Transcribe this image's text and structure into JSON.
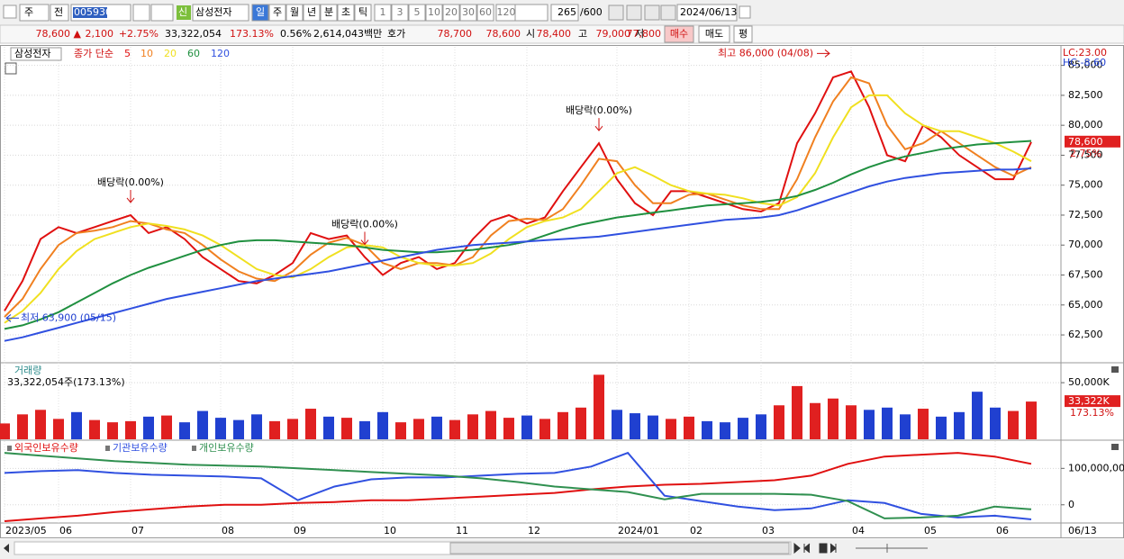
{
  "toolbar": {
    "market": "주",
    "prev": "전",
    "code": "005930",
    "new": "신",
    "name": "삼성전자",
    "periods": [
      "일",
      "주",
      "월",
      "년",
      "분",
      "초",
      "틱"
    ],
    "intervals": [
      "1",
      "3",
      "5",
      "10",
      "20",
      "30",
      "60",
      "120"
    ],
    "count": "265",
    "max": "/600",
    "date": "2024/06/13"
  },
  "quote": {
    "price": "78,600 ▲",
    "change": "2,100",
    "rate": "+2.75%",
    "volume": "33,322,054",
    "volume_rate": "173.13%",
    "turnover": "0.56%",
    "amount": "2,614,043백만",
    "ask_label": "호가",
    "ask": "78,700",
    "bid": "78,600",
    "open_label": "시",
    "open": "78,400",
    "high_label": "고",
    "high": "79,000",
    "low_label": "저",
    "low": "77,800",
    "buy": "매수",
    "sell": "매도",
    "avg": "평"
  },
  "chart_data": [
    {
      "type": "line",
      "legend_title": "삼성전자",
      "ma_label": "종가 단순",
      "categories": [
        "2023/05",
        null,
        null,
        "06",
        null,
        null,
        null,
        "07",
        null,
        null,
        null,
        null,
        "08",
        null,
        null,
        null,
        "09",
        null,
        null,
        null,
        null,
        "10",
        null,
        null,
        null,
        "11",
        null,
        null,
        null,
        "12",
        null,
        null,
        null,
        null,
        "2024/01",
        null,
        null,
        null,
        "02",
        null,
        null,
        null,
        "03",
        null,
        null,
        null,
        null,
        "04",
        null,
        null,
        null,
        "05",
        null,
        null,
        null,
        "06",
        null,
        null
      ],
      "last_date": "06/13",
      "series": [
        {
          "name": "5",
          "color": "#e01010",
          "values": [
            64500,
            67000,
            70500,
            71500,
            71000,
            71500,
            72000,
            72500,
            71000,
            71500,
            70500,
            69000,
            68000,
            67000,
            66800,
            67500,
            68500,
            71000,
            70500,
            70800,
            69000,
            67500,
            68500,
            69000,
            68000,
            68500,
            70500,
            72000,
            72500,
            71800,
            72300,
            74500,
            76500,
            78500,
            75500,
            73500,
            72500,
            74500,
            74500,
            74000,
            73500,
            73000,
            72800,
            73500,
            78500,
            81000,
            84000,
            84500,
            81500,
            77500,
            77000,
            80000,
            79000,
            77500,
            76500,
            75500,
            75500,
            78600
          ]
        },
        {
          "name": "10",
          "color": "#f08020",
          "values": [
            64000,
            65500,
            68000,
            70000,
            71000,
            71200,
            71500,
            72000,
            71800,
            71300,
            71000,
            70000,
            68800,
            67800,
            67200,
            67000,
            67800,
            69200,
            70200,
            70600,
            70000,
            68500,
            68000,
            68500,
            68500,
            68300,
            69000,
            70800,
            72000,
            72200,
            72100,
            73000,
            75000,
            77200,
            77000,
            75000,
            73500,
            73500,
            74200,
            74300,
            73800,
            73300,
            73000,
            73000,
            75500,
            79000,
            82000,
            84000,
            83500,
            80000,
            78000,
            78500,
            79500,
            78500,
            77500,
            76500,
            75800,
            76500
          ]
        },
        {
          "name": "20",
          "color": "#f0e020",
          "values": [
            63500,
            64500,
            66000,
            68000,
            69500,
            70500,
            71000,
            71500,
            71800,
            71600,
            71300,
            70800,
            70000,
            69000,
            68000,
            67500,
            67300,
            68000,
            69000,
            69800,
            70000,
            69800,
            69000,
            68500,
            68300,
            68300,
            68500,
            69300,
            70500,
            71500,
            72000,
            72300,
            73000,
            74500,
            76000,
            76500,
            75800,
            75000,
            74500,
            74300,
            74200,
            73900,
            73500,
            73300,
            74000,
            76000,
            79000,
            81500,
            82500,
            82500,
            81000,
            80000,
            79500,
            79500,
            79000,
            78500,
            77800,
            77000
          ]
        },
        {
          "name": "60",
          "color": "#209040",
          "values": [
            63000,
            63300,
            63800,
            64400,
            65200,
            66000,
            66800,
            67500,
            68100,
            68600,
            69100,
            69600,
            70000,
            70300,
            70400,
            70400,
            70300,
            70200,
            70100,
            70000,
            69800,
            69600,
            69500,
            69400,
            69400,
            69500,
            69600,
            69800,
            70000,
            70300,
            70800,
            71300,
            71700,
            72000,
            72300,
            72500,
            72700,
            72900,
            73100,
            73300,
            73400,
            73500,
            73600,
            73800,
            74100,
            74600,
            75200,
            75900,
            76500,
            77000,
            77400,
            77700,
            78000,
            78200,
            78400,
            78500,
            78600,
            78700
          ]
        },
        {
          "name": "120",
          "color": "#3050e0",
          "values": [
            62000,
            62300,
            62700,
            63100,
            63500,
            63900,
            64300,
            64700,
            65100,
            65500,
            65800,
            66100,
            66400,
            66700,
            67000,
            67200,
            67400,
            67600,
            67800,
            68100,
            68400,
            68700,
            69000,
            69300,
            69600,
            69800,
            70000,
            70100,
            70200,
            70300,
            70400,
            70500,
            70600,
            70700,
            70900,
            71100,
            71300,
            71500,
            71700,
            71900,
            72100,
            72200,
            72300,
            72500,
            72900,
            73400,
            73900,
            74400,
            74900,
            75300,
            75600,
            75800,
            76000,
            76100,
            76200,
            76300,
            76300,
            76400
          ]
        }
      ],
      "ylim": [
        60250,
        86550
      ],
      "yticks": [
        {
          "value": 62500,
          "label": "62,500"
        },
        {
          "value": 65000,
          "label": "65,000"
        },
        {
          "value": 67500,
          "label": "67,500"
        },
        {
          "value": 70000,
          "label": "70,000"
        },
        {
          "value": 72500,
          "label": "72,500"
        },
        {
          "value": 75000,
          "label": "75,000"
        },
        {
          "value": 77500,
          "label": "77,500"
        },
        {
          "value": 80000,
          "label": "80,000"
        },
        {
          "value": 82500,
          "label": "82,500"
        },
        {
          "value": 85000,
          "label": "85,000"
        }
      ],
      "grid": true,
      "lc": "LC:23.00",
      "hc": "HC:-8.60",
      "last_label": "78,600",
      "last_rate": "2.75%",
      "high": {
        "label": "최고 86,000 (04/08)",
        "value": 86000,
        "index": 46
      },
      "low": {
        "label": "최저 63,900 (05/15)",
        "value": 63900,
        "index": 0
      },
      "dividends": [
        {
          "label": "배당락(0.00%)",
          "index": 7
        },
        {
          "label": "배당락(0.00%)",
          "index": 20
        },
        {
          "label": "배당락(0.00%)",
          "index": 33
        }
      ]
    },
    {
      "type": "bar",
      "title": "거래량",
      "subtitle": "33,322,054주(173.13%)",
      "values": [
        14000,
        22000,
        26000,
        18000,
        24000,
        17000,
        15000,
        16000,
        20000,
        21000,
        15000,
        25000,
        19000,
        17000,
        22000,
        16000,
        18000,
        27000,
        20000,
        19000,
        16000,
        24000,
        15000,
        18000,
        20000,
        17000,
        22000,
        25000,
        19000,
        21000,
        18000,
        24000,
        28000,
        57000,
        26000,
        23000,
        21000,
        18000,
        20000,
        16000,
        15000,
        19000,
        22000,
        30000,
        47000,
        32000,
        36000,
        30000,
        26000,
        28000,
        22000,
        27000,
        20000,
        24000,
        42000,
        28000,
        25000,
        33322
      ],
      "up_color": "#e02020",
      "down_color": "#2040d0",
      "ylim": [
        0,
        66000
      ],
      "yticks": [
        {
          "value": 50000,
          "label": "50,000K"
        }
      ],
      "last_label": "33,322K",
      "last_rate": "173.13%"
    },
    {
      "type": "line",
      "series": [
        {
          "name": "외국인보유수량",
          "color": "#e01010",
          "values": [
            -45000000,
            -37500000,
            -30000000,
            -20000000,
            -12500000,
            -5000000,
            0,
            0,
            5000000,
            7500000,
            12500000,
            12500000,
            17500000,
            22500000,
            27500000,
            32500000,
            42500000,
            50000000,
            55000000,
            57500000,
            62500000,
            67500000,
            80000000,
            112500000,
            132500000,
            137500000,
            142500000,
            132500000,
            112500000
          ]
        },
        {
          "name": "기관보유수량",
          "color": "#3050e0",
          "values": [
            87500000,
            92500000,
            95000000,
            87500000,
            82500000,
            80000000,
            77500000,
            72500000,
            12500000,
            50000000,
            70000000,
            75000000,
            75000000,
            80000000,
            85000000,
            87500000,
            105000000,
            142500000,
            25000000,
            10000000,
            -5000000,
            -15000000,
            -10000000,
            12500000,
            5000000,
            -25000000,
            -35000000,
            -30000000,
            -40000000
          ]
        },
        {
          "name": "개인보유수량",
          "color": "#309050",
          "values": [
            142500000,
            135000000,
            127500000,
            120000000,
            115000000,
            110000000,
            107500000,
            105000000,
            100000000,
            95000000,
            90000000,
            85000000,
            80000000,
            72500000,
            62500000,
            50000000,
            42500000,
            35000000,
            15000000,
            30000000,
            30000000,
            30000000,
            27500000,
            10000000,
            -37500000,
            -35000000,
            -30000000,
            -5000000,
            -12500000
          ]
        }
      ],
      "ylim": [
        -50000000,
        170000000
      ],
      "yticks": [
        {
          "value": 100000000,
          "label": "100,000,000"
        },
        0
      ]
    }
  ]
}
